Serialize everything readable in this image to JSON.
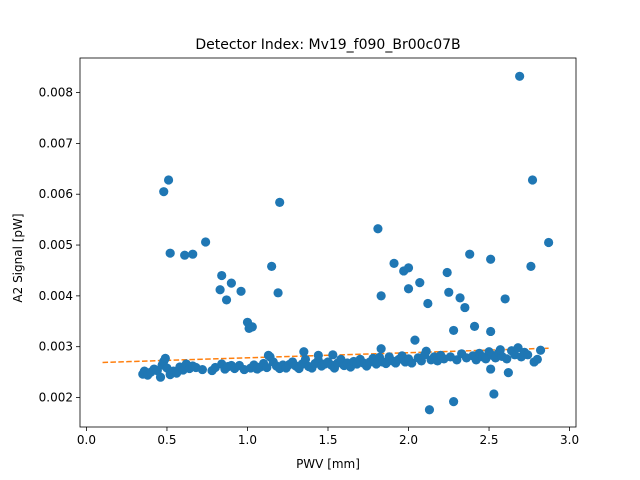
{
  "chart_data": {
    "type": "scatter",
    "title": "Detector Index: Mv19_f090_Br00c07B",
    "xlabel": "PWV [mm]",
    "ylabel": "A2 Signal [pW]",
    "xlim": [
      -0.04,
      3.04
    ],
    "ylim": [
      0.00142,
      0.00868
    ],
    "x_ticks": [
      0.0,
      0.5,
      1.0,
      1.5,
      2.0,
      2.5,
      3.0
    ],
    "x_tick_labels": [
      "0.0",
      "0.5",
      "1.0",
      "1.5",
      "2.0",
      "2.5",
      "3.0"
    ],
    "y_ticks": [
      0.002,
      0.003,
      0.004,
      0.005,
      0.006,
      0.007,
      0.008
    ],
    "y_tick_labels": [
      "0.002",
      "0.003",
      "0.004",
      "0.005",
      "0.006",
      "0.007",
      "0.008"
    ],
    "grid": false,
    "marker_color": "#1f77b4",
    "fit_color": "#ff7f0e",
    "fit_line": {
      "style": "dashed",
      "x": [
        0.1,
        2.87
      ],
      "y": [
        0.00269,
        0.00297
      ]
    },
    "series": [
      {
        "name": "outliers",
        "points": [
          [
            2.69,
            0.00832
          ],
          [
            0.51,
            0.00628
          ],
          [
            0.48,
            0.00605
          ],
          [
            2.77,
            0.00628
          ],
          [
            1.2,
            0.00584
          ],
          [
            1.81,
            0.00532
          ],
          [
            2.87,
            0.00505
          ],
          [
            0.74,
            0.00506
          ],
          [
            0.52,
            0.00484
          ],
          [
            0.61,
            0.0048
          ],
          [
            0.66,
            0.00482
          ],
          [
            2.38,
            0.00482
          ],
          [
            2.51,
            0.00472
          ],
          [
            1.91,
            0.00464
          ],
          [
            1.15,
            0.00458
          ],
          [
            1.97,
            0.00449
          ],
          [
            2.0,
            0.00455
          ],
          [
            2.76,
            0.00458
          ],
          [
            2.24,
            0.00446
          ],
          [
            0.84,
            0.0044
          ],
          [
            0.9,
            0.00425
          ],
          [
            2.07,
            0.00426
          ],
          [
            2.0,
            0.00414
          ],
          [
            0.83,
            0.00412
          ],
          [
            0.96,
            0.00409
          ],
          [
            1.19,
            0.00406
          ],
          [
            2.25,
            0.00407
          ],
          [
            1.83,
            0.004
          ],
          [
            2.32,
            0.00396
          ],
          [
            2.6,
            0.00394
          ],
          [
            0.87,
            0.00392
          ],
          [
            2.12,
            0.00385
          ],
          [
            2.35,
            0.00377
          ],
          [
            1.0,
            0.00348
          ],
          [
            1.01,
            0.00336
          ],
          [
            1.03,
            0.00339
          ],
          [
            2.41,
            0.0034
          ],
          [
            2.28,
            0.00332
          ],
          [
            2.51,
            0.0033
          ],
          [
            2.04,
            0.00313
          ],
          [
            2.13,
            0.00176
          ],
          [
            2.28,
            0.00192
          ],
          [
            2.53,
            0.00207
          ],
          [
            2.62,
            0.00249
          ],
          [
            2.51,
            0.00256
          ]
        ]
      },
      {
        "name": "main band",
        "points": [
          [
            0.35,
            0.00246
          ],
          [
            0.36,
            0.00252
          ],
          [
            0.38,
            0.00244
          ],
          [
            0.4,
            0.0025
          ],
          [
            0.42,
            0.00256
          ],
          [
            0.44,
            0.00253
          ],
          [
            0.46,
            0.0024
          ],
          [
            0.47,
            0.00264
          ],
          [
            0.48,
            0.00271
          ],
          [
            0.49,
            0.00277
          ],
          [
            0.5,
            0.00258
          ],
          [
            0.52,
            0.00245
          ],
          [
            0.54,
            0.00252
          ],
          [
            0.56,
            0.00248
          ],
          [
            0.58,
            0.0026
          ],
          [
            0.6,
            0.00254
          ],
          [
            0.62,
            0.00266
          ],
          [
            0.64,
            0.00257
          ],
          [
            0.66,
            0.00262
          ],
          [
            0.68,
            0.00259
          ],
          [
            0.72,
            0.00255
          ],
          [
            0.78,
            0.00253
          ],
          [
            0.8,
            0.00259
          ],
          [
            0.84,
            0.00266
          ],
          [
            0.86,
            0.00256
          ],
          [
            0.88,
            0.00261
          ],
          [
            0.9,
            0.00263
          ],
          [
            0.92,
            0.00257
          ],
          [
            0.95,
            0.00263
          ],
          [
            0.98,
            0.00255
          ],
          [
            1.02,
            0.00258
          ],
          [
            1.04,
            0.00264
          ],
          [
            1.06,
            0.00256
          ],
          [
            1.08,
            0.0026
          ],
          [
            1.1,
            0.00267
          ],
          [
            1.12,
            0.00259
          ],
          [
            1.14,
            0.0028
          ],
          [
            1.16,
            0.0027
          ],
          [
            1.18,
            0.00262
          ],
          [
            1.2,
            0.00257
          ],
          [
            1.22,
            0.00264
          ],
          [
            1.24,
            0.00258
          ],
          [
            1.26,
            0.00265
          ],
          [
            1.28,
            0.0027
          ],
          [
            1.3,
            0.00262
          ],
          [
            1.32,
            0.00257
          ],
          [
            1.34,
            0.00266
          ],
          [
            1.36,
            0.00275
          ],
          [
            1.38,
            0.00261
          ],
          [
            1.4,
            0.00258
          ],
          [
            1.42,
            0.00267
          ],
          [
            1.44,
            0.00273
          ],
          [
            1.46,
            0.00262
          ],
          [
            1.48,
            0.00266
          ],
          [
            1.5,
            0.0027
          ],
          [
            1.52,
            0.00264
          ],
          [
            1.54,
            0.00258
          ],
          [
            1.56,
            0.00268
          ],
          [
            1.58,
            0.00275
          ],
          [
            1.6,
            0.00263
          ],
          [
            1.62,
            0.00268
          ],
          [
            1.64,
            0.0026
          ],
          [
            1.66,
            0.00271
          ],
          [
            1.68,
            0.00266
          ],
          [
            1.7,
            0.00275
          ],
          [
            1.72,
            0.00268
          ],
          [
            1.74,
            0.00262
          ],
          [
            1.76,
            0.0027
          ],
          [
            1.78,
            0.00277
          ],
          [
            1.8,
            0.00266
          ],
          [
            1.82,
            0.00279
          ],
          [
            1.84,
            0.0027
          ],
          [
            1.86,
            0.00267
          ],
          [
            1.88,
            0.0028
          ],
          [
            1.9,
            0.00272
          ],
          [
            1.92,
            0.00268
          ],
          [
            1.94,
            0.00275
          ],
          [
            1.96,
            0.00282
          ],
          [
            1.98,
            0.0027
          ],
          [
            2.0,
            0.00276
          ],
          [
            2.02,
            0.00268
          ],
          [
            2.06,
            0.00278
          ],
          [
            2.08,
            0.00272
          ],
          [
            2.1,
            0.00284
          ],
          [
            2.14,
            0.00274
          ],
          [
            2.16,
            0.0028
          ],
          [
            2.18,
            0.00272
          ],
          [
            2.2,
            0.00283
          ],
          [
            2.22,
            0.00276
          ],
          [
            2.26,
            0.0028
          ],
          [
            2.3,
            0.00274
          ],
          [
            2.33,
            0.00286
          ],
          [
            2.36,
            0.00278
          ],
          [
            2.4,
            0.00282
          ],
          [
            2.42,
            0.00274
          ],
          [
            2.44,
            0.00287
          ],
          [
            2.46,
            0.0028
          ],
          [
            2.48,
            0.00276
          ],
          [
            2.5,
            0.0029
          ],
          [
            2.52,
            0.00283
          ],
          [
            2.54,
            0.00278
          ],
          [
            2.56,
            0.00288
          ],
          [
            2.58,
            0.00281
          ],
          [
            2.61,
            0.00276
          ],
          [
            2.64,
            0.00292
          ],
          [
            2.66,
            0.00284
          ],
          [
            2.68,
            0.00298
          ],
          [
            2.7,
            0.0028
          ],
          [
            2.72,
            0.00289
          ],
          [
            2.74,
            0.00284
          ],
          [
            2.78,
            0.0027
          ],
          [
            2.8,
            0.00275
          ],
          [
            2.82,
            0.00293
          ],
          [
            1.83,
            0.00296
          ],
          [
            1.44,
            0.00283
          ],
          [
            1.53,
            0.00284
          ],
          [
            1.13,
            0.00283
          ],
          [
            1.35,
            0.0029
          ],
          [
            2.11,
            0.00291
          ],
          [
            2.57,
            0.00294
          ]
        ]
      }
    ]
  }
}
